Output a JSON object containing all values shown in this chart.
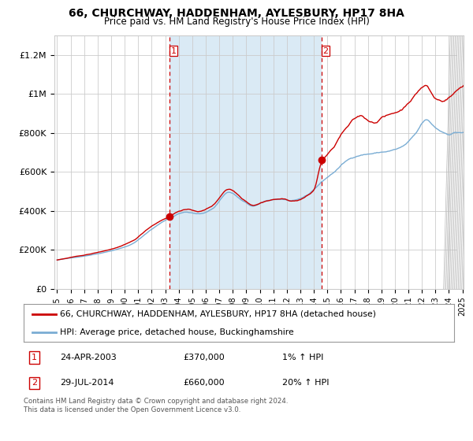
{
  "title": "66, CHURCHWAY, HADDENHAM, AYLESBURY, HP17 8HA",
  "subtitle": "Price paid vs. HM Land Registry's House Price Index (HPI)",
  "ylim": [
    0,
    1300000
  ],
  "yticks": [
    0,
    200000,
    400000,
    600000,
    800000,
    1000000,
    1200000
  ],
  "ytick_labels": [
    "£0",
    "£200K",
    "£400K",
    "£600K",
    "£800K",
    "£1M",
    "£1.2M"
  ],
  "year_start": 1995,
  "year_end": 2025,
  "transaction1_year": 2003.31,
  "transaction1_value": 370000,
  "transaction2_year": 2014.57,
  "transaction2_value": 660000,
  "legend_line1": "66, CHURCHWAY, HADDENHAM, AYLESBURY, HP17 8HA (detached house)",
  "legend_line2": "HPI: Average price, detached house, Buckinghamshire",
  "annotation1_num": "1",
  "annotation1_date": "24-APR-2003",
  "annotation1_price": "£370,000",
  "annotation1_hpi": "1% ↑ HPI",
  "annotation2_num": "2",
  "annotation2_date": "29-JUL-2014",
  "annotation2_price": "£660,000",
  "annotation2_hpi": "20% ↑ HPI",
  "footer": "Contains HM Land Registry data © Crown copyright and database right 2024.\nThis data is licensed under the Open Government Licence v3.0.",
  "line_color_red": "#cc0000",
  "line_color_blue": "#7aadd4",
  "shade_color": "#daeaf5",
  "vline_color": "#cc0000",
  "dot_color": "#cc0000",
  "background_color": "#ffffff",
  "grid_color": "#cccccc",
  "hpi_base_1995": 148000,
  "hpi_base_2025": 850000
}
